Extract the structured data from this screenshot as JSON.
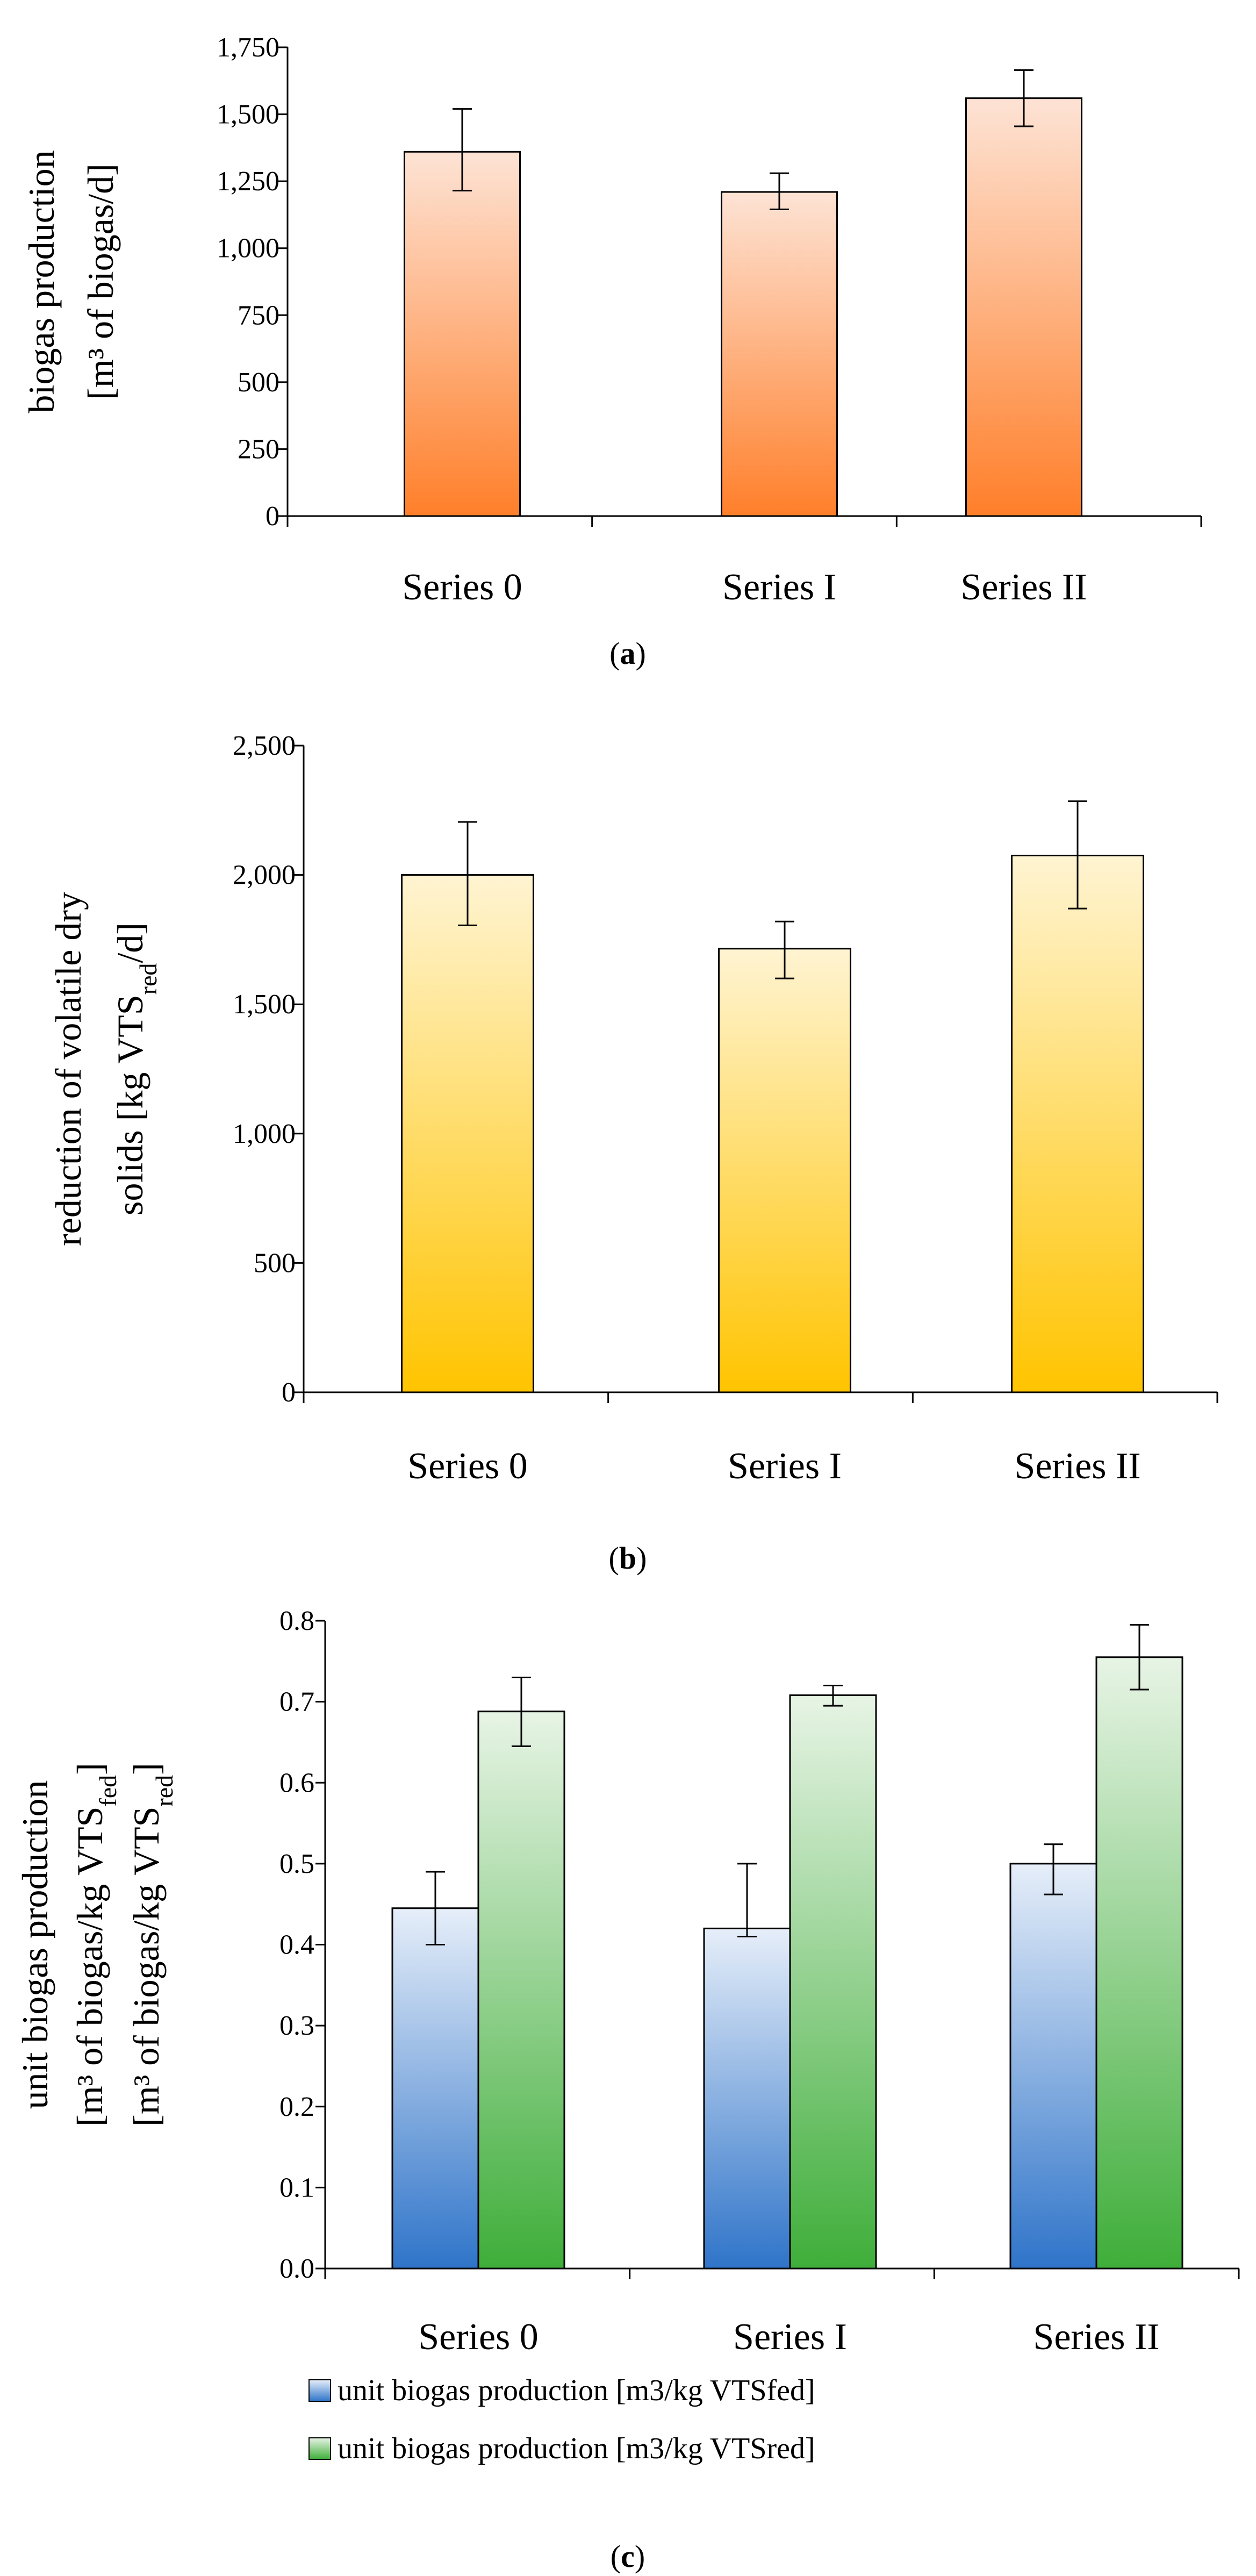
{
  "chart_data": [
    {
      "type": "bar",
      "panel_label": "a",
      "categories": [
        "Series 0",
        "Series I",
        "Series II"
      ],
      "values": [
        1360,
        1210,
        1560
      ],
      "errors": [
        [
          1215,
          1520
        ],
        [
          1145,
          1280
        ],
        [
          1455,
          1665
        ]
      ],
      "ylabel_lines": [
        "biogas production",
        "[m³ of biogas/d]"
      ],
      "ylim": [
        0,
        1750
      ],
      "yticks": [
        0,
        250,
        500,
        750,
        1000,
        1250,
        1500,
        1750
      ],
      "ytick_labels": [
        "0",
        "250",
        "500",
        "750",
        "1,000",
        "1,250",
        "1,500",
        "1,750"
      ],
      "color_top": "#fde3d5",
      "color_bottom": "#ff7f2a"
    },
    {
      "type": "bar",
      "panel_label": "b",
      "categories": [
        "Series 0",
        "Series I",
        "Series II"
      ],
      "values": [
        2000,
        1715,
        2075
      ],
      "errors": [
        [
          1805,
          2205
        ],
        [
          1600,
          1820
        ],
        [
          1870,
          2285
        ]
      ],
      "ylabel_lines": [
        "reduction of volatile dry",
        "solids  [kg VTS_red/d]"
      ],
      "ylim": [
        0,
        2500
      ],
      "yticks": [
        0,
        500,
        1000,
        1500,
        2000,
        2500
      ],
      "ytick_labels": [
        "0",
        "500",
        "1,000",
        "1,500",
        "2,000",
        "2,500"
      ],
      "color_top": "#fff4d2",
      "color_bottom": "#ffc400"
    },
    {
      "type": "bar",
      "panel_label": "c",
      "categories": [
        "Series 0",
        "Series I",
        "Series II"
      ],
      "series": [
        {
          "name": "unit biogas production [m3/kg VTSfed]",
          "values": [
            0.445,
            0.42,
            0.5
          ],
          "errors": [
            [
              0.4,
              0.49
            ],
            [
              0.41,
              0.5
            ],
            [
              0.462,
              0.524
            ]
          ],
          "color_top": "#e6eef9",
          "color_bottom": "#2f74c9"
        },
        {
          "name": "unit biogas production [m3/kg VTSred]",
          "values": [
            0.688,
            0.708,
            0.755
          ],
          "errors": [
            [
              0.645,
              0.73
            ],
            [
              0.695,
              0.72
            ],
            [
              0.715,
              0.795
            ]
          ],
          "color_top": "#e7f4e5",
          "color_bottom": "#3fae3a"
        }
      ],
      "ylabel_lines": [
        "unit biogas production",
        "[m³ of biogas/kg VTS_fed]",
        "[m³ of biogas/kg VTS_red]"
      ],
      "ylim": [
        0,
        0.8
      ],
      "yticks": [
        0,
        0.1,
        0.2,
        0.3,
        0.4,
        0.5,
        0.6,
        0.7,
        0.8
      ],
      "ytick_labels": [
        "0.0",
        "0.1",
        "0.2",
        "0.3",
        "0.4",
        "0.5",
        "0.6",
        "0.7",
        "0.8"
      ]
    }
  ]
}
